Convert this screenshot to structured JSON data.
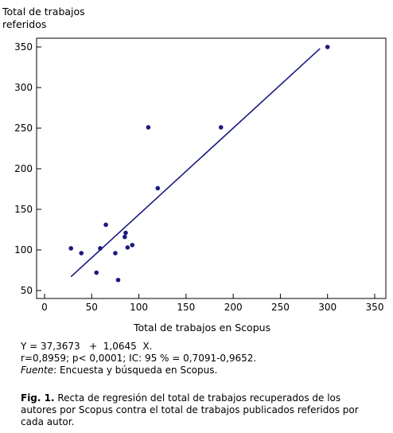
{
  "chart_data": {
    "type": "scatter",
    "title": "",
    "xlabel": "Total de trabajos en Scopus",
    "ylabel_lines": [
      "Total de trabajos",
      "referidos"
    ],
    "xlim": [
      0,
      350
    ],
    "ylim": [
      50,
      350
    ],
    "xticks": [
      0,
      50,
      100,
      150,
      200,
      250,
      300,
      350
    ],
    "yticks": [
      50,
      100,
      150,
      200,
      250,
      300,
      350
    ],
    "points": [
      {
        "x": 28,
        "y": 102
      },
      {
        "x": 39,
        "y": 96
      },
      {
        "x": 55,
        "y": 72
      },
      {
        "x": 59,
        "y": 102
      },
      {
        "x": 65,
        "y": 131
      },
      {
        "x": 75,
        "y": 96
      },
      {
        "x": 78,
        "y": 63
      },
      {
        "x": 85,
        "y": 116
      },
      {
        "x": 86,
        "y": 121
      },
      {
        "x": 88,
        "y": 103
      },
      {
        "x": 93,
        "y": 106
      },
      {
        "x": 110,
        "y": 251
      },
      {
        "x": 120,
        "y": 176
      },
      {
        "x": 187,
        "y": 251
      },
      {
        "x": 300,
        "y": 350
      }
    ],
    "regression_line": {
      "x1": 28,
      "y1": 67,
      "x2": 292,
      "y2": 348
    },
    "color": "#1a1a80",
    "grid": false,
    "legend": "none"
  },
  "stats": {
    "equation": "Y = 37,3673   +  1,0645  X.",
    "correlation": "r=0,8959; p< 0,0001; IC: 95 % = 0,7091-0,9652.",
    "source_label": "Fuente",
    "source_text": ": Encuesta y búsqueda en Scopus."
  },
  "caption": {
    "label": "Fig. 1.",
    "text": "  Recta de regresión del total de trabajos recuperados de los autores por Scopus contra el total de trabajos publicados referidos por cada autor."
  }
}
